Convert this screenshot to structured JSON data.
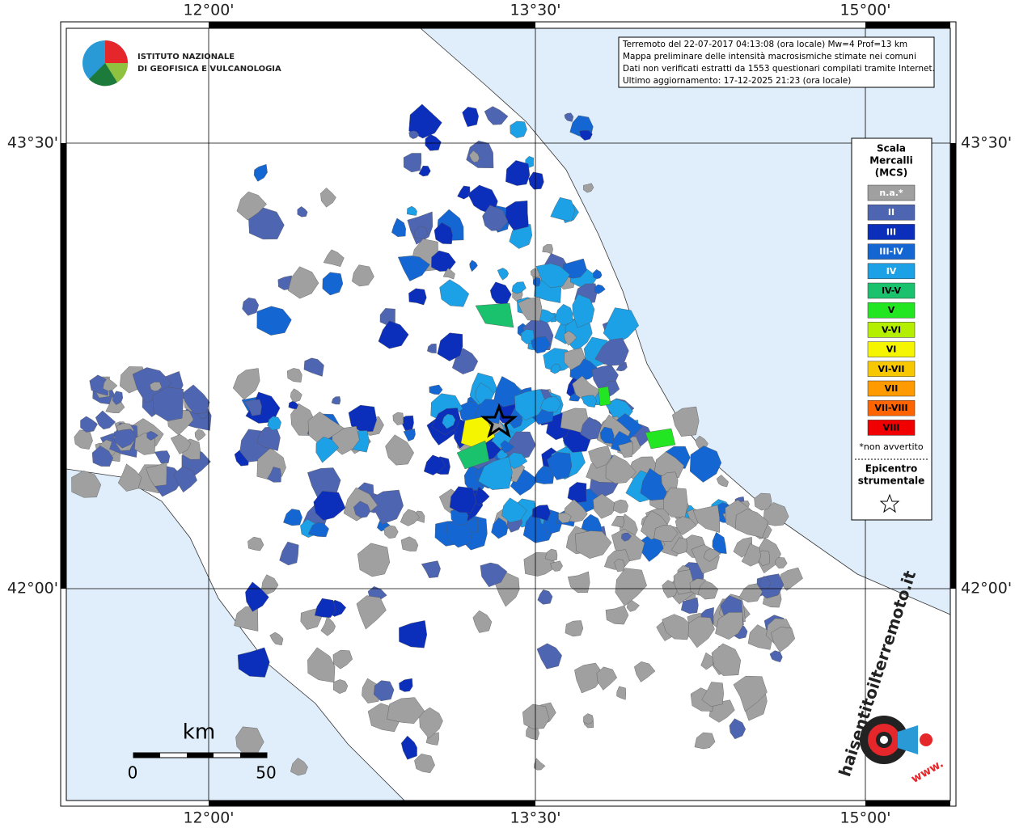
{
  "logo": {
    "line1": "ISTITUTO NAZIONALE",
    "line2": "DI GEOFISICA E VULCANOLOGIA"
  },
  "grid": {
    "lon_labels": [
      "12°00'",
      "13°30'",
      "15°00'"
    ],
    "lat_labels": [
      "43°30'",
      "42°00'"
    ]
  },
  "info": [
    "Terremoto del 22-07-2017 04:13:08 (ora locale) Mw=4 Prof=13 km",
    "Mappa preliminare delle intensità macrosismiche stimate nei comuni",
    "Dati non verificati estratti da 1553 questionari compilati tramite Internet.",
    "Ultimo aggiornamento: 17-12-2025 21:23 (ora locale)"
  ],
  "legend": {
    "title": [
      "Scala",
      "Mercalli",
      "(MCS)"
    ],
    "items": [
      {
        "label": "n.a.*",
        "color": "#a0a0a0"
      },
      {
        "label": "II",
        "color": "#4e65b2"
      },
      {
        "label": "III",
        "color": "#0b2ebb"
      },
      {
        "label": "III-IV",
        "color": "#1466d2"
      },
      {
        "label": "IV",
        "color": "#1ca0e6"
      },
      {
        "label": "IV-V",
        "color": "#1bc26e"
      },
      {
        "label": "V",
        "color": "#22e622"
      },
      {
        "label": "V-VI",
        "color": "#b4ee00"
      },
      {
        "label": "VI",
        "color": "#f5f500"
      },
      {
        "label": "VI-VII",
        "color": "#f7c700"
      },
      {
        "label": "VII",
        "color": "#ff9a00"
      },
      {
        "label": "VII-VIII",
        "color": "#ff6400"
      },
      {
        "label": "VIII",
        "color": "#f00000"
      }
    ],
    "note": "*non avvertito",
    "epicenter": [
      "Epicentro",
      "strumentale"
    ]
  },
  "scale": {
    "unit": "km",
    "start": "0",
    "end": "50"
  },
  "site": {
    "name": "haisentitoilterremoto.it",
    "www": "www."
  }
}
